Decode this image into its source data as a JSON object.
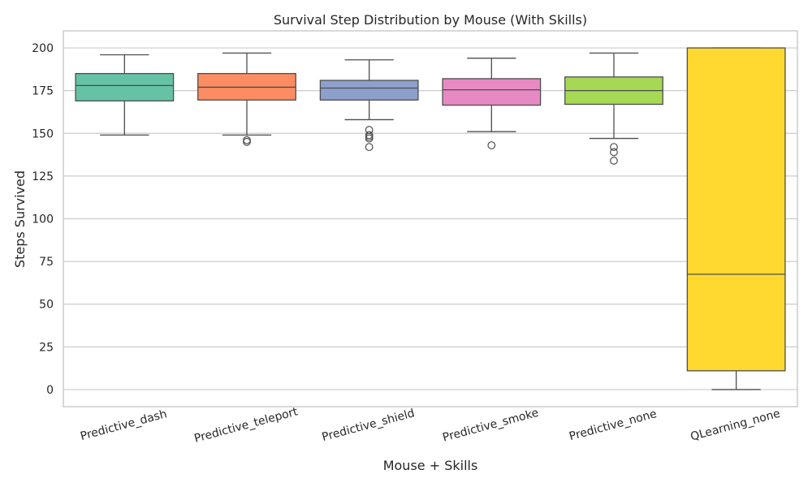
{
  "chart_data": {
    "type": "box",
    "title": "Survival Step Distribution by Mouse (With Skills)",
    "xlabel": "Mouse + Skills",
    "ylabel": "Steps Survived",
    "ylim": [
      -10,
      210
    ],
    "yticks": [
      0,
      25,
      50,
      75,
      100,
      125,
      150,
      175,
      200
    ],
    "grid": true,
    "categories": [
      "Predictive_dash",
      "Predictive_teleport",
      "Predictive_shield",
      "Predictive_smoke",
      "Predictive_none",
      "QLearning_none"
    ],
    "colors": [
      "#66c2a5",
      "#fc8d62",
      "#8da0cb",
      "#e78ac3",
      "#a6d854",
      "#ffd92f"
    ],
    "boxes": [
      {
        "whisker_low": 149,
        "q1": 169,
        "median": 178,
        "q3": 185,
        "whisker_high": 196,
        "outliers": []
      },
      {
        "whisker_low": 149,
        "q1": 169.5,
        "median": 177,
        "q3": 185,
        "whisker_high": 197,
        "outliers": [
          145,
          146
        ]
      },
      {
        "whisker_low": 158,
        "q1": 169.5,
        "median": 176.5,
        "q3": 181,
        "whisker_high": 193,
        "outliers": [
          142,
          147,
          148,
          149,
          152
        ]
      },
      {
        "whisker_low": 151,
        "q1": 166.5,
        "median": 175.5,
        "q3": 182,
        "whisker_high": 194,
        "outliers": [
          143
        ]
      },
      {
        "whisker_low": 147,
        "q1": 167,
        "median": 175,
        "q3": 183,
        "whisker_high": 197,
        "outliers": [
          134,
          139,
          142
        ]
      },
      {
        "whisker_low": 0,
        "q1": 11,
        "median": 67.5,
        "q3": 200,
        "whisker_high": 200,
        "outliers": []
      }
    ]
  }
}
